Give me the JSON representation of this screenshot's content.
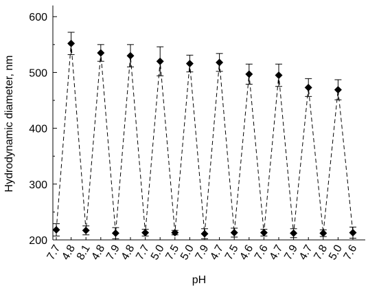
{
  "chart_data": {
    "type": "scatter",
    "title": "",
    "xlabel": "pH",
    "ylabel": "Hydrodynamic diameter, nm",
    "ylim": [
      200,
      620
    ],
    "y_ticks": [
      200,
      300,
      400,
      500,
      600
    ],
    "grid": false,
    "legend": "none",
    "line_style": "dashed",
    "marker": "diamond",
    "categories": [
      "7.7",
      "4.8",
      "8.1",
      "4.8",
      "7.9",
      "4.8",
      "7.7",
      "5.0",
      "7.5",
      "5.0",
      "7.9",
      "4.7",
      "7.5",
      "4.6",
      "7.6",
      "4.7",
      "7.9",
      "4.7",
      "7.8",
      "5.0",
      "7.6"
    ],
    "series": [
      {
        "values": [
          218,
          552,
          217,
          535,
          212,
          530,
          213,
          520,
          213,
          516,
          211,
          518,
          213,
          497,
          213,
          495,
          212,
          473,
          212,
          469,
          213
        ],
        "error": [
          11,
          20,
          8,
          15,
          10,
          20,
          6,
          26,
          4,
          15,
          9,
          16,
          8,
          18,
          6,
          20,
          8,
          16,
          6,
          18,
          10
        ]
      }
    ],
    "colors": {
      "marker": "#000000",
      "line": "#000000",
      "axis": "#000000"
    }
  }
}
